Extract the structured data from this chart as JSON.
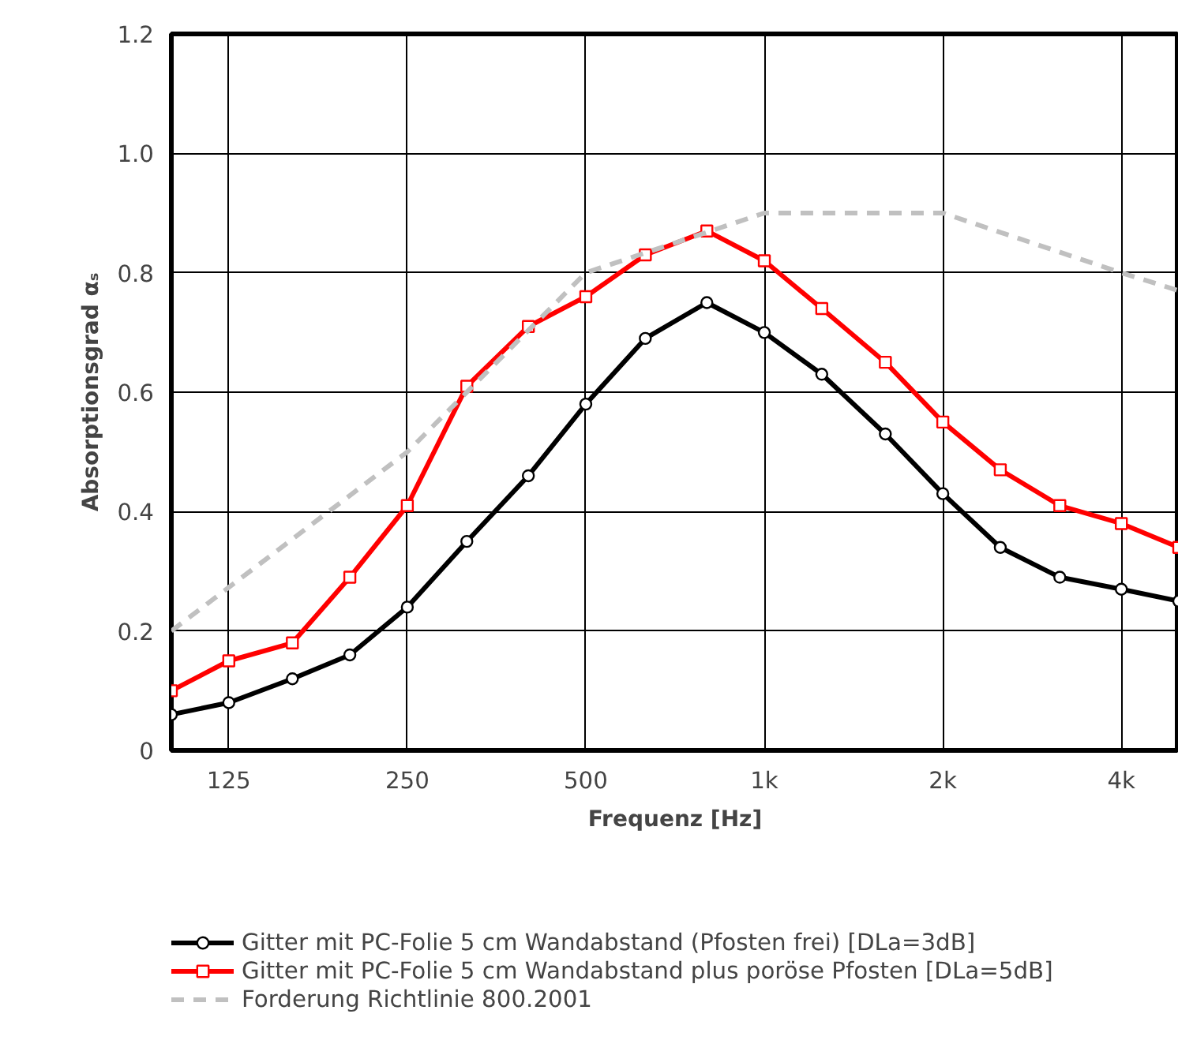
{
  "chart_data": {
    "type": "line",
    "xlabel": "Frequenz [Hz]",
    "ylabel": "Absorptionsgrad αₛ",
    "log": "x",
    "xlim": [
      100,
      5000
    ],
    "xticks": [
      125,
      250,
      500,
      {
        "value": 1000,
        "label": "1k"
      },
      {
        "value": 2000,
        "label": "2k"
      },
      {
        "value": 4000,
        "label": "4k"
      }
    ],
    "ylim": [
      0,
      1.2
    ],
    "yticks": [
      0,
      0.2,
      0.4,
      0.6,
      0.8,
      {
        "value": 1.0,
        "label": "1.0"
      },
      1.2
    ],
    "grid": true,
    "legend": "bottom",
    "x": [
      100,
      125,
      160,
      200,
      250,
      315,
      400,
      500,
      630,
      800,
      1000,
      1250,
      1600,
      2000,
      2500,
      3150,
      4000,
      5000
    ],
    "series": [
      {
        "name": "Gitter mit PC-Folie 5 cm Wandabstand (Pfosten frei) [DLa=3dB]",
        "color": "#000000",
        "marker": "circle",
        "line_style": "solid",
        "values": [
          0.06,
          0.08,
          0.12,
          0.16,
          0.24,
          0.35,
          0.46,
          0.58,
          0.69,
          0.75,
          0.7,
          0.63,
          0.53,
          0.43,
          0.34,
          0.29,
          0.27,
          0.25
        ]
      },
      {
        "name": "Gitter mit PC-Folie 5 cm Wandabstand plus poröse Pfosten [DLa=5dB]",
        "color": "#ff0000",
        "marker": "square",
        "line_style": "solid",
        "values": [
          0.1,
          0.15,
          0.18,
          0.29,
          0.41,
          0.61,
          0.71,
          0.76,
          0.83,
          0.87,
          0.82,
          0.74,
          0.65,
          0.55,
          0.47,
          0.41,
          0.38,
          0.34
        ]
      },
      {
        "name": "Forderung Richtlinie 800.2001",
        "color": "#c0c0c0",
        "marker": "none",
        "line_style": "dashed",
        "x": [
          100,
          250,
          500,
          1000,
          2000,
          4000,
          5000
        ],
        "values": [
          0.2,
          0.5,
          0.8,
          0.9,
          0.9,
          0.8,
          0.77
        ]
      }
    ]
  }
}
